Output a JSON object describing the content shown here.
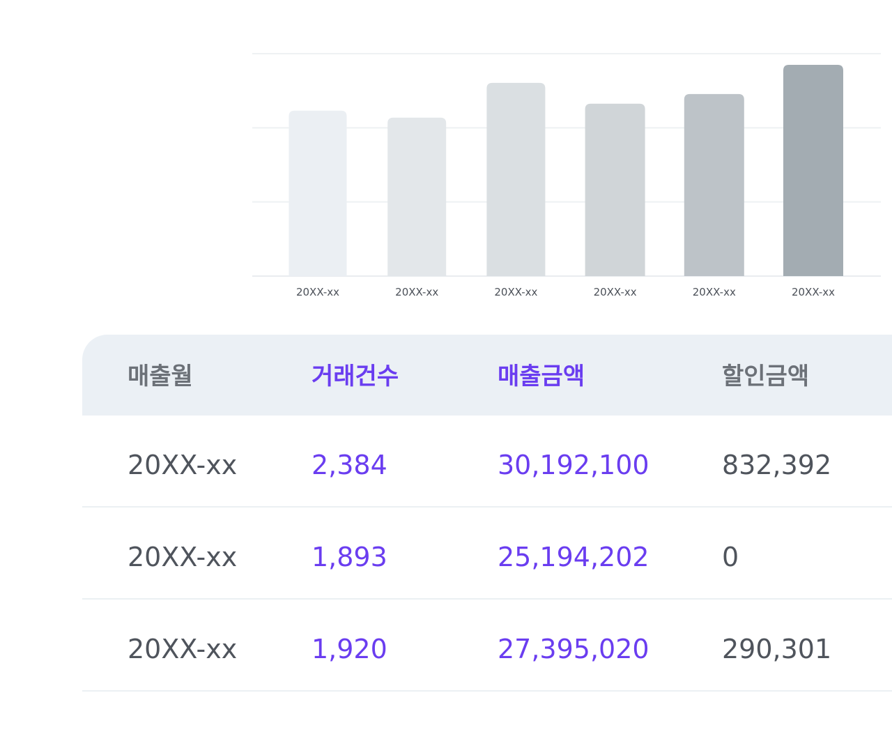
{
  "chart_data": {
    "type": "bar",
    "categories": [
      "20XX-xx",
      "20XX-xx",
      "20XX-xx",
      "20XX-xx",
      "20XX-xx",
      "20XX-xx"
    ],
    "values": [
      238,
      228,
      278,
      248,
      262,
      304
    ],
    "ylim": [
      0,
      320
    ],
    "grid": true,
    "bar_colors": [
      "#ebeff3",
      "#e3e7ea",
      "#dadfe2",
      "#d0d5d8",
      "#bdc3c8",
      "#a3acb2"
    ]
  },
  "table": {
    "headers": [
      {
        "label": "매출월",
        "accent": false
      },
      {
        "label": "거래건수",
        "accent": true
      },
      {
        "label": "매출금액",
        "accent": true
      },
      {
        "label": "할인금액",
        "accent": false
      }
    ],
    "rows": [
      [
        "20XX-xx",
        "2,384",
        "30,192,100",
        "832,392"
      ],
      [
        "20XX-xx",
        "1,893",
        "25,194,202",
        "0"
      ],
      [
        "20XX-xx",
        "1,920",
        "27,395,020",
        "290,301"
      ]
    ]
  },
  "colors": {
    "accent": "#6a3df0",
    "text": "#4f545c",
    "header_bg": "#ebf0f5",
    "grid": "#eef1f3"
  }
}
